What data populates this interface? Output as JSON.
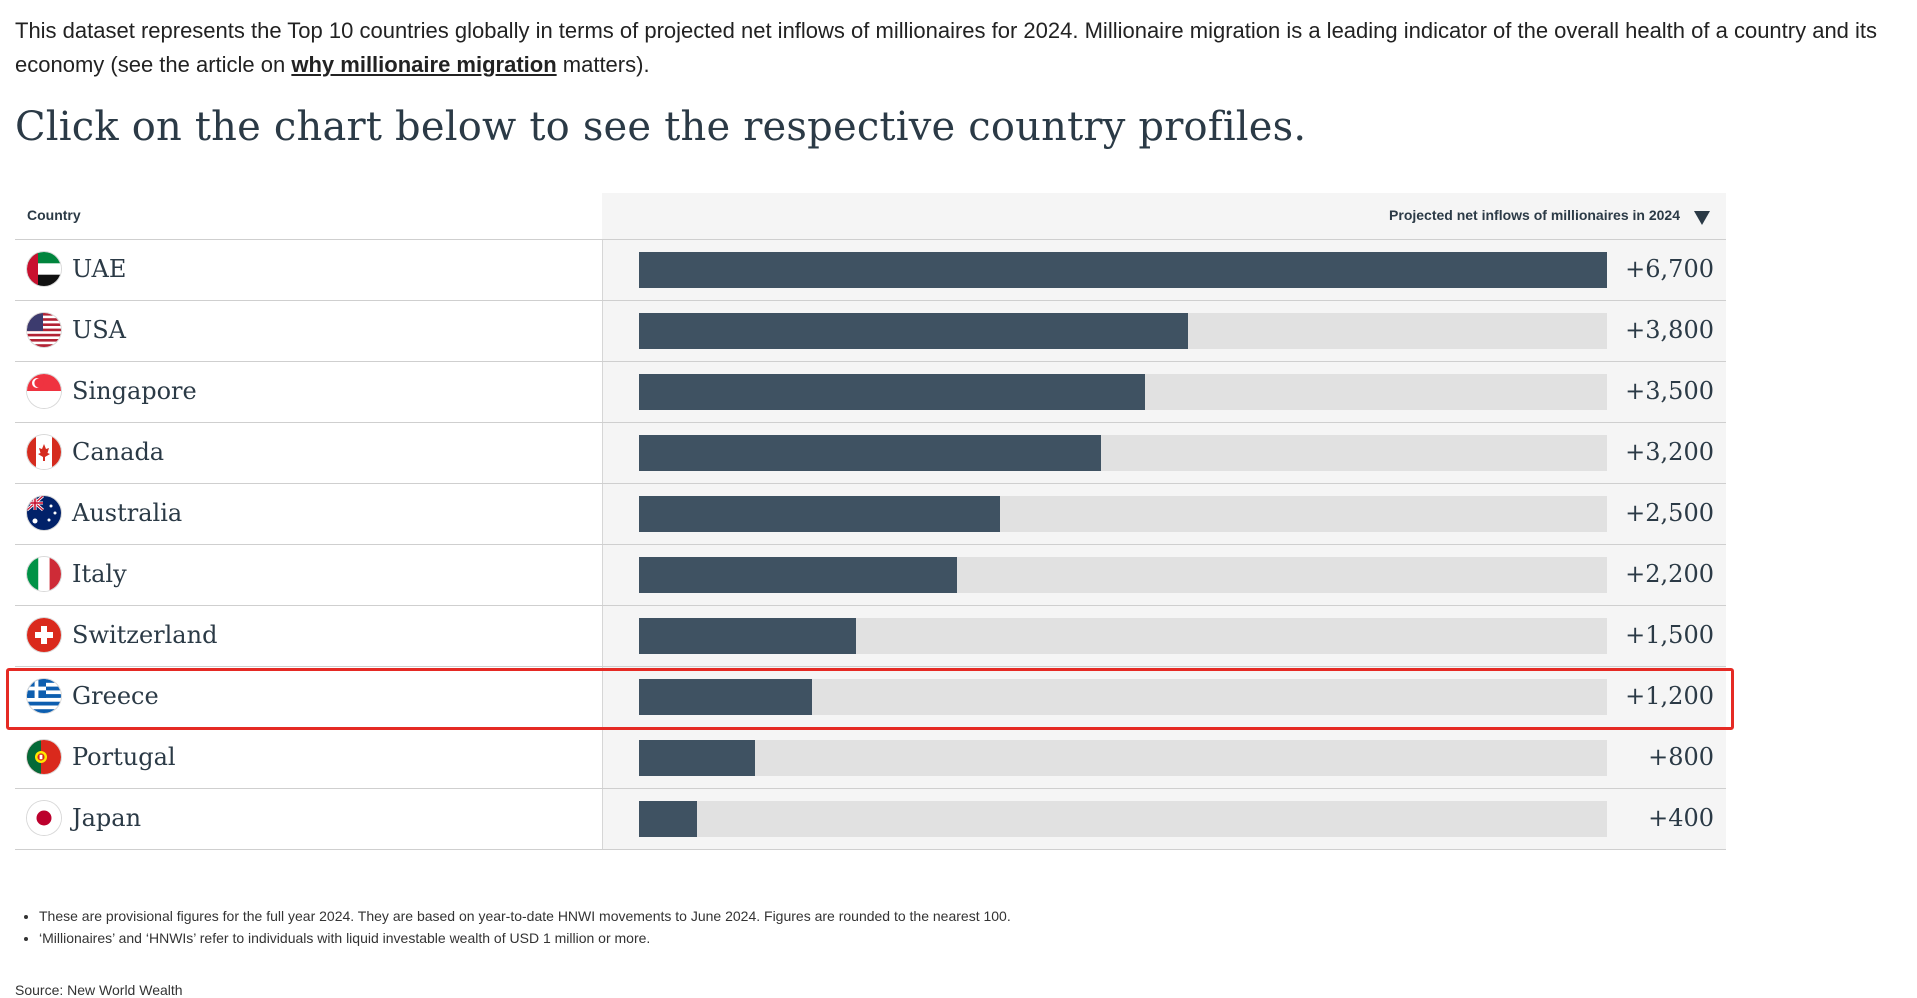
{
  "intro": {
    "text_before": "This dataset represents the Top 10 countries globally in terms of projected net inflows of millionaires for 2024. Millionaire migration is a leading indicator of the overall health of a country and its economy (see the article on ",
    "link_text": "why millionaire migration",
    "text_after": " matters)."
  },
  "headline": "Click on the chart below to see the respective country profiles.",
  "table": {
    "country_header": "Country",
    "value_header": "Projected net inflows of millionaires in 2024",
    "sort_icon": "triangle-down-icon"
  },
  "chart_data": {
    "type": "bar",
    "orientation": "horizontal",
    "categories": [
      "UAE",
      "USA",
      "Singapore",
      "Canada",
      "Australia",
      "Italy",
      "Switzerland",
      "Greece",
      "Portugal",
      "Japan"
    ],
    "values": [
      6700,
      3800,
      3500,
      3200,
      2500,
      2200,
      1500,
      1200,
      800,
      400
    ],
    "value_labels": [
      "+6,700",
      "+3,800",
      "+3,500",
      "+3,200",
      "+2,500",
      "+2,200",
      "+1,500",
      "+1,200",
      "+800",
      "+400"
    ],
    "xlim": [
      0,
      6700
    ],
    "bar_color": "#3f5262",
    "track_color": "#e1e1e1",
    "highlighted": "Greece",
    "highlight_color": "#e52a24",
    "flags": [
      "uae-flag-icon",
      "usa-flag-icon",
      "singapore-flag-icon",
      "canada-flag-icon",
      "australia-flag-icon",
      "italy-flag-icon",
      "switzerland-flag-icon",
      "greece-flag-icon",
      "portugal-flag-icon",
      "japan-flag-icon"
    ]
  },
  "notes": [
    "These are provisional figures for the full year 2024. They are based on year-to-date HNWI movements to June 2024. Figures are rounded to the nearest 100.",
    "‘Millionaires’ and ‘HNWIs’ refer to individuals with liquid investable wealth of USD 1 million or more."
  ],
  "source": "Source: New World Wealth"
}
